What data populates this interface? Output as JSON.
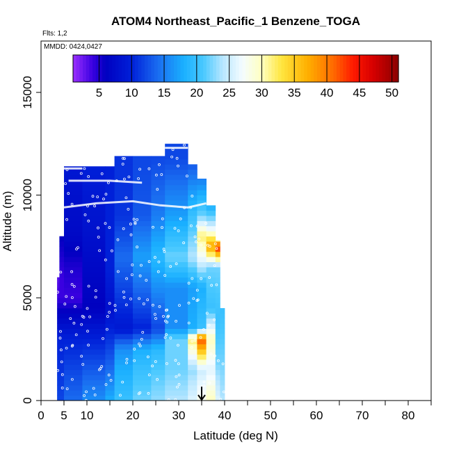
{
  "chart_data": {
    "type": "heatmap",
    "title": "ATOM4 Northeast_Pacific_1 Benzene_TOGA",
    "flights_label": "Flts: 1,2",
    "dates_label": "MMDD: 0424,0427",
    "xlabel": "Latitude (deg N)",
    "ylabel": "Altitude (m)",
    "xlim": [
      0,
      85
    ],
    "ylim": [
      0,
      17500
    ],
    "x_ticks": [
      0,
      5,
      10,
      20,
      30,
      40,
      50,
      60,
      70,
      80
    ],
    "x_tick_labels": [
      "0",
      "5",
      "10",
      "20",
      "30",
      "40",
      "50",
      "60",
      "70",
      "80"
    ],
    "x_minor_ticks": [
      15,
      25,
      35,
      45,
      55,
      65,
      75,
      85
    ],
    "y_ticks": [
      0,
      5000,
      10000,
      15000
    ],
    "y_tick_labels": [
      "0",
      "5000",
      "10000",
      "15000"
    ],
    "colorbar": {
      "min": 1,
      "max": 51,
      "ticks": [
        5,
        10,
        15,
        20,
        25,
        30,
        35,
        40,
        45,
        50
      ],
      "tick_labels": [
        "5",
        "10",
        "15",
        "20",
        "25",
        "30",
        "35",
        "40",
        "45",
        "50"
      ],
      "stops": [
        {
          "v": 1,
          "color": "#9b30ff"
        },
        {
          "v": 4,
          "color": "#3a00e0"
        },
        {
          "v": 6,
          "color": "#0000c0"
        },
        {
          "v": 10,
          "color": "#0020d8"
        },
        {
          "v": 14,
          "color": "#1a6cf0"
        },
        {
          "v": 18,
          "color": "#1ab0ff"
        },
        {
          "v": 21,
          "color": "#48c8ff"
        },
        {
          "v": 24,
          "color": "#b8e6ff"
        },
        {
          "v": 27,
          "color": "#f4fcff"
        },
        {
          "v": 30,
          "color": "#ffffc0"
        },
        {
          "v": 33,
          "color": "#ffe640"
        },
        {
          "v": 37,
          "color": "#ffb000"
        },
        {
          "v": 41,
          "color": "#ff6a00"
        },
        {
          "v": 44,
          "color": "#ff1a00"
        },
        {
          "v": 47,
          "color": "#d80000"
        },
        {
          "v": 51,
          "color": "#8a0000"
        }
      ]
    },
    "columns": [
      {
        "lat0": 3.5,
        "lat1": 5,
        "top": 6000,
        "profile": [
          [
            0,
            12
          ],
          [
            3000,
            10
          ],
          [
            5000,
            4
          ],
          [
            6000,
            3
          ]
        ]
      },
      {
        "lat0": 4,
        "lat1": 5,
        "top": 8000,
        "profile": [
          [
            0,
            12
          ],
          [
            3000,
            10
          ],
          [
            5000,
            4
          ],
          [
            6000,
            4
          ],
          [
            8000,
            6
          ]
        ]
      },
      {
        "lat0": 5,
        "lat1": 9,
        "top": 11400,
        "profile": [
          [
            0,
            14
          ],
          [
            1500,
            12
          ],
          [
            3000,
            10
          ],
          [
            5000,
            4
          ],
          [
            6500,
            5
          ],
          [
            8000,
            7
          ],
          [
            10000,
            8
          ],
          [
            11400,
            9
          ]
        ]
      },
      {
        "lat0": 9,
        "lat1": 14,
        "top": 11400,
        "profile": [
          [
            0,
            16
          ],
          [
            1500,
            13
          ],
          [
            3000,
            10
          ],
          [
            4500,
            6
          ],
          [
            6500,
            7
          ],
          [
            8000,
            8
          ],
          [
            10000,
            9
          ],
          [
            11400,
            10
          ]
        ]
      },
      {
        "lat0": 14,
        "lat1": 16,
        "top": 11400,
        "profile": [
          [
            0,
            18
          ],
          [
            1500,
            14
          ],
          [
            3000,
            11
          ],
          [
            4500,
            8
          ],
          [
            6500,
            10
          ],
          [
            8000,
            10
          ],
          [
            10000,
            10
          ],
          [
            11400,
            10
          ]
        ]
      },
      {
        "lat0": 16,
        "lat1": 20,
        "top": 11900,
        "profile": [
          [
            0,
            20
          ],
          [
            1500,
            18
          ],
          [
            2500,
            16
          ],
          [
            3500,
            9
          ],
          [
            5500,
            12
          ],
          [
            7000,
            14
          ],
          [
            9000,
            11
          ],
          [
            11900,
            11
          ]
        ]
      },
      {
        "lat0": 20,
        "lat1": 24,
        "top": 11900,
        "profile": [
          [
            0,
            22
          ],
          [
            1500,
            20
          ],
          [
            2500,
            18
          ],
          [
            3500,
            10
          ],
          [
            5500,
            14
          ],
          [
            7000,
            17
          ],
          [
            9000,
            13
          ],
          [
            11900,
            12
          ]
        ]
      },
      {
        "lat0": 24,
        "lat1": 27,
        "top": 11900,
        "profile": [
          [
            0,
            23
          ],
          [
            1500,
            21
          ],
          [
            2500,
            19
          ],
          [
            3500,
            12
          ],
          [
            5500,
            16
          ],
          [
            7000,
            19
          ],
          [
            9000,
            15
          ],
          [
            11900,
            12
          ]
        ]
      },
      {
        "lat0": 27,
        "lat1": 32,
        "top": 12500,
        "profile": [
          [
            0,
            24
          ],
          [
            1500,
            22
          ],
          [
            3000,
            22
          ],
          [
            3500,
            16
          ],
          [
            5500,
            16
          ],
          [
            7000,
            22
          ],
          [
            9000,
            17
          ],
          [
            11900,
            12
          ],
          [
            12500,
            12
          ]
        ]
      },
      {
        "lat0": 32,
        "lat1": 34,
        "top": 11500,
        "profile": [
          [
            0,
            26
          ],
          [
            1500,
            23
          ],
          [
            3000,
            32
          ],
          [
            3500,
            18
          ],
          [
            5500,
            17
          ],
          [
            7000,
            24
          ],
          [
            9000,
            20
          ],
          [
            11500,
            13
          ]
        ]
      },
      {
        "lat0": 34,
        "lat1": 36,
        "top": 10800,
        "profile": [
          [
            0,
            28
          ],
          [
            1500,
            25
          ],
          [
            3000,
            42
          ],
          [
            3500,
            20
          ],
          [
            5500,
            18
          ],
          [
            7000,
            27
          ],
          [
            8000,
            32
          ],
          [
            9000,
            22
          ],
          [
            10800,
            15
          ]
        ]
      },
      {
        "lat0": 36,
        "lat1": 38,
        "top": 9500,
        "profile": [
          [
            0,
            30
          ],
          [
            1500,
            26
          ],
          [
            3000,
            30
          ],
          [
            4500,
            20
          ],
          [
            6500,
            22
          ],
          [
            7500,
            38
          ],
          [
            8500,
            25
          ],
          [
            9500,
            18
          ]
        ]
      },
      {
        "lat0": 38,
        "lat1": 39,
        "top": 7800,
        "profile": [
          [
            0,
            26
          ],
          [
            2000,
            22
          ],
          [
            4000,
            20
          ],
          [
            6500,
            22
          ],
          [
            7500,
            45
          ],
          [
            7800,
            30
          ]
        ]
      },
      {
        "lat0": 39,
        "lat1": 40,
        "top": 4500,
        "profile": [
          [
            0,
            24
          ],
          [
            2000,
            22
          ],
          [
            4500,
            20
          ]
        ]
      }
    ],
    "flight_tracks": [
      [
        [
          5,
          9400
        ],
        [
          12,
          9600
        ],
        [
          20,
          9700
        ],
        [
          26,
          9500
        ],
        [
          32,
          9400
        ],
        [
          36,
          9600
        ]
      ],
      [
        [
          6,
          10700
        ],
        [
          15,
          10700
        ],
        [
          22,
          10600
        ]
      ],
      [
        [
          3,
          11300
        ],
        [
          9,
          11300
        ]
      ],
      [
        [
          27,
          12300
        ],
        [
          32,
          12300
        ]
      ]
    ],
    "arrow_lat": 35
  }
}
